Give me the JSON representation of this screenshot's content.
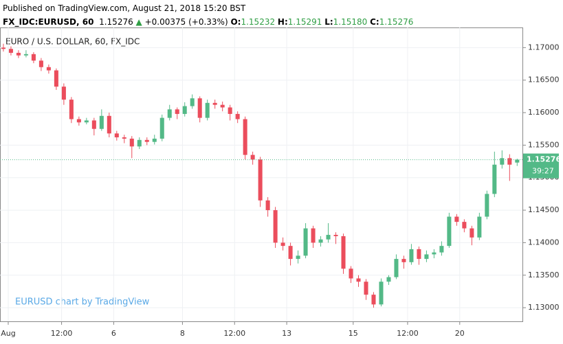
{
  "header": {
    "published": "Published on TradingView.com, August 21, 2018 15:20 BST",
    "symbol": "FX_IDC:EURUSD, 60",
    "last": "1.15276",
    "change": "+0.00375 (+0.33%)",
    "o_label": "O:",
    "o": "1.15232",
    "h_label": "H:",
    "h": "1.15291",
    "l_label": "L:",
    "l": "1.15180",
    "c_label": "C:",
    "c": "1.15276"
  },
  "chart_data": {
    "type": "candlestick",
    "title": "EURO / U.S. DOLLAR, 60, FX_IDC",
    "watermark": "EURUSD chart by TradingView",
    "up_color": "#53b987",
    "down_color": "#eb4d5c",
    "grid": true,
    "xlim": [
      -0.45,
      68.7
    ],
    "xticks": [
      {
        "value": 0.64,
        "label": "Aug"
      },
      {
        "value": 7.7,
        "label": "12:00"
      },
      {
        "value": 14.6,
        "label": "6"
      },
      {
        "value": 23.7,
        "label": "8"
      },
      {
        "value": 30.6,
        "label": "12:00"
      },
      {
        "value": 37.5,
        "label": "13"
      },
      {
        "value": 46.3,
        "label": "15"
      },
      {
        "value": 53.5,
        "label": "12:00"
      },
      {
        "value": 60.4,
        "label": "20"
      }
    ],
    "ylim": [
      1.1279,
      1.1731
    ],
    "yticks": [
      {
        "value": 1.13,
        "label": "1.13000"
      },
      {
        "value": 1.135,
        "label": "1.13500"
      },
      {
        "value": 1.14,
        "label": "1.14000"
      },
      {
        "value": 1.145,
        "label": "1.14500"
      },
      {
        "value": 1.15,
        "label": "1.15000"
      },
      {
        "value": 1.155,
        "label": "1.15500"
      },
      {
        "value": 1.16,
        "label": "1.16000"
      },
      {
        "value": 1.165,
        "label": "1.16500"
      },
      {
        "value": 1.17,
        "label": "1.17000"
      }
    ],
    "last_price": 1.15276,
    "countdown": "39:27",
    "open": [
      1.17,
      1.1698,
      1.1692,
      1.1688,
      1.169,
      1.168,
      1.167,
      1.1665,
      1.164,
      1.162,
      1.159,
      1.1585,
      1.1588,
      1.1575,
      1.1595,
      1.1568,
      1.1562,
      1.156,
      1.1548,
      1.1558,
      1.1555,
      1.156,
      1.1592,
      1.1605,
      1.1598,
      1.161,
      1.1622,
      1.1592,
      1.1615,
      1.1612,
      1.1608,
      1.1598,
      1.159,
      1.1535,
      1.1528,
      1.1465,
      1.145,
      1.14,
      1.1395,
      1.1375,
      1.138,
      1.1422,
      1.14,
      1.1405,
      1.1412,
      1.141,
      1.136,
      1.1345,
      1.134,
      1.132,
      1.1305,
      1.134,
      1.1347,
      1.1375,
      1.137,
      1.139,
      1.1375,
      1.1382,
      1.1385,
      1.1395,
      1.144,
      1.1432,
      1.1422,
      1.1408,
      1.144,
      1.1475,
      1.152,
      1.153,
      1.15232
    ],
    "high": [
      1.1706,
      1.1702,
      1.1696,
      1.1696,
      1.1693,
      1.1684,
      1.1674,
      1.1668,
      1.1645,
      1.1624,
      1.1594,
      1.1592,
      1.1592,
      1.1605,
      1.16,
      1.1572,
      1.1566,
      1.1564,
      1.1562,
      1.1562,
      1.1566,
      1.1597,
      1.1612,
      1.1608,
      1.1616,
      1.1628,
      1.1625,
      1.162,
      1.162,
      1.1617,
      1.1612,
      1.1602,
      1.1594,
      1.154,
      1.1532,
      1.147,
      1.1455,
      1.1408,
      1.14,
      1.1388,
      1.143,
      1.1426,
      1.141,
      1.143,
      1.1416,
      1.1414,
      1.1364,
      1.135,
      1.1344,
      1.1324,
      1.1345,
      1.135,
      1.1382,
      1.138,
      1.1398,
      1.1394,
      1.1388,
      1.139,
      1.1402,
      1.1446,
      1.1444,
      1.1436,
      1.1426,
      1.1446,
      1.148,
      1.154,
      1.1542,
      1.1536,
      1.15291
    ],
    "low": [
      1.1694,
      1.1688,
      1.1684,
      1.1685,
      1.1676,
      1.1664,
      1.166,
      1.1635,
      1.1612,
      1.1584,
      1.158,
      1.1582,
      1.1565,
      1.1572,
      1.1562,
      1.1557,
      1.1553,
      1.153,
      1.1544,
      1.155,
      1.1551,
      1.1556,
      1.1588,
      1.159,
      1.1594,
      1.1606,
      1.1585,
      1.1588,
      1.1606,
      1.1602,
      1.1588,
      1.1584,
      1.1528,
      1.152,
      1.1455,
      1.144,
      1.1392,
      1.1388,
      1.1365,
      1.1368,
      1.1376,
      1.1392,
      1.1394,
      1.14,
      1.1398,
      1.1352,
      1.1338,
      1.1332,
      1.1312,
      1.13,
      1.1302,
      1.1335,
      1.1344,
      1.136,
      1.1366,
      1.1366,
      1.137,
      1.1376,
      1.138,
      1.1392,
      1.1426,
      1.1416,
      1.1396,
      1.1404,
      1.1436,
      1.147,
      1.1514,
      1.1495,
      1.1518
    ],
    "close": [
      1.1698,
      1.1692,
      1.1688,
      1.169,
      1.168,
      1.167,
      1.1665,
      1.164,
      1.162,
      1.159,
      1.1585,
      1.1588,
      1.1575,
      1.1595,
      1.1568,
      1.1562,
      1.156,
      1.1548,
      1.1558,
      1.1555,
      1.156,
      1.1592,
      1.1605,
      1.1598,
      1.161,
      1.1622,
      1.1592,
      1.1615,
      1.1612,
      1.1608,
      1.1598,
      1.159,
      1.1535,
      1.1528,
      1.1465,
      1.145,
      1.14,
      1.1395,
      1.1375,
      1.138,
      1.1422,
      1.14,
      1.1405,
      1.1412,
      1.141,
      1.136,
      1.1345,
      1.134,
      1.132,
      1.1305,
      1.134,
      1.1347,
      1.1375,
      1.137,
      1.139,
      1.1375,
      1.1382,
      1.1385,
      1.1395,
      1.144,
      1.1432,
      1.1422,
      1.1408,
      1.144,
      1.1475,
      1.152,
      1.153,
      1.152,
      1.15276
    ]
  }
}
